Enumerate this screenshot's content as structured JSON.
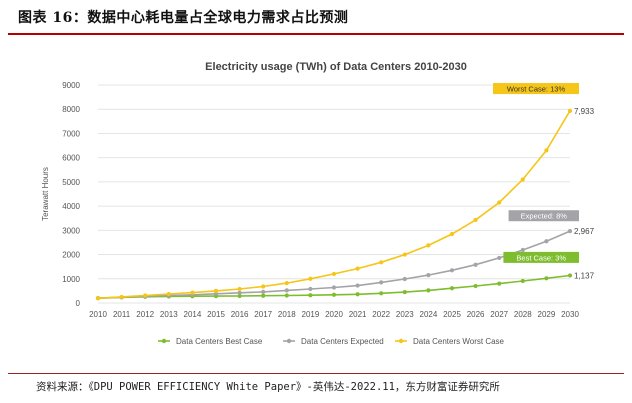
{
  "figure": {
    "title": "图表 16：数据中心耗电量占全球电力需求占比预测",
    "source": "资料来源：《DPU POWER EFFICIENCY White Paper》-英伟达-2022.11，东方财富证券研究所"
  },
  "colors": {
    "best": "#7dbd2e",
    "expected": "#a3a3a8",
    "worst": "#f5c518",
    "grid": "#e4e4e4",
    "text": "#555555",
    "accent_rule": "#b30000"
  },
  "chart_data": {
    "type": "line",
    "title": "Electricity usage (TWh) of Data Centers 2010-2030",
    "xlabel": "",
    "ylabel": "Terawatt Hours",
    "ylim": [
      0,
      9000
    ],
    "yticks": [
      "0",
      "1000",
      "2000",
      "3000",
      "4000",
      "5000",
      "6000",
      "7000",
      "8000",
      "9000"
    ],
    "x": [
      "2010",
      "2011",
      "2012",
      "2013",
      "2014",
      "2015",
      "2016",
      "2017",
      "2018",
      "2019",
      "2020",
      "2021",
      "2022",
      "2023",
      "2024",
      "2025",
      "2026",
      "2027",
      "2028",
      "2029",
      "2030"
    ],
    "grid": true,
    "legend_position": "bottom",
    "series": [
      {
        "key": "best",
        "name": "Data Centers Best Case",
        "values": [
          200,
          230,
          255,
          270,
          280,
          285,
          290,
          300,
          310,
          320,
          340,
          360,
          400,
          450,
          520,
          610,
          700,
          800,
          910,
          1020,
          1137
        ],
        "end_label": "1,137",
        "tag": "Best Case: 3%"
      },
      {
        "key": "expected",
        "name": "Data Centers Expected",
        "values": [
          200,
          240,
          280,
          310,
          340,
          380,
          420,
          460,
          520,
          580,
          640,
          720,
          850,
          990,
          1150,
          1350,
          1580,
          1860,
          2190,
          2550,
          2967
        ],
        "end_label": "2,967",
        "tag": "Expected: 8%"
      },
      {
        "key": "worst",
        "name": "Data Centers Worst Case",
        "values": [
          200,
          250,
          310,
          370,
          430,
          500,
          580,
          680,
          820,
          1000,
          1200,
          1420,
          1680,
          2000,
          2380,
          2850,
          3430,
          4150,
          5100,
          6300,
          7933
        ],
        "end_label": "7,933",
        "tag": "Worst Case: 13%"
      }
    ]
  }
}
